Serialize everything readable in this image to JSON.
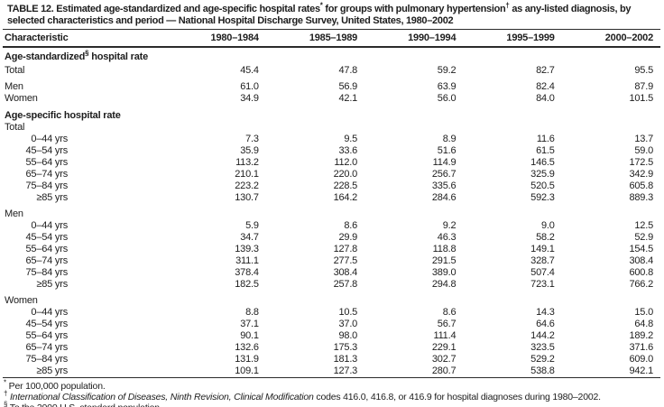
{
  "title": {
    "parts": [
      {
        "text": "TABLE 12. Estimated age-standardized and age-specific hospital rates"
      },
      {
        "sup": "*"
      },
      {
        "text": " for groups with pulmonary hypertension"
      },
      {
        "sup": "†"
      },
      {
        "text": " as any-listed diagnosis, by selected characteristics and period — National Hospital Discharge Survey, United States, 1980–2002"
      }
    ]
  },
  "columns": [
    "Characteristic",
    "1980–1984",
    "1985–1989",
    "1990–1994",
    "1995–1999",
    "2000–2002"
  ],
  "sections": [
    {
      "heading_parts": [
        {
          "text": "Age-standardized"
        },
        {
          "sup": "§"
        },
        {
          "text": " hospital rate"
        }
      ],
      "groups": [
        {
          "rows": [
            {
              "label": "Total",
              "indent": false,
              "values": [
                "45.4",
                "47.8",
                "59.2",
                "82.7",
                "95.5"
              ]
            }
          ]
        },
        {
          "rows": [
            {
              "label": "Men",
              "indent": false,
              "values": [
                "61.0",
                "56.9",
                "63.9",
                "82.4",
                "87.9"
              ]
            },
            {
              "label": "Women",
              "indent": false,
              "values": [
                "34.9",
                "42.1",
                "56.0",
                "84.0",
                "101.5"
              ]
            }
          ]
        }
      ]
    },
    {
      "heading_parts": [
        {
          "text": "Age-specific hospital rate"
        }
      ],
      "groups": [
        {
          "rows": [
            {
              "label": "Total",
              "indent": false,
              "values": [
                "",
                "",
                "",
                "",
                ""
              ]
            },
            {
              "label": "0–44 yrs",
              "indent": true,
              "values": [
                "7.3",
                "9.5",
                "8.9",
                "11.6",
                "13.7"
              ]
            },
            {
              "label": "45–54 yrs",
              "indent": true,
              "values": [
                "35.9",
                "33.6",
                "51.6",
                "61.5",
                "59.0"
              ]
            },
            {
              "label": "55–64 yrs",
              "indent": true,
              "values": [
                "113.2",
                "112.0",
                "114.9",
                "146.5",
                "172.5"
              ]
            },
            {
              "label": "65–74 yrs",
              "indent": true,
              "values": [
                "210.1",
                "220.0",
                "256.7",
                "325.9",
                "342.9"
              ]
            },
            {
              "label": "75–84 yrs",
              "indent": true,
              "values": [
                "223.2",
                "228.5",
                "335.6",
                "520.5",
                "605.8"
              ]
            },
            {
              "label": "≥85 yrs",
              "indent": true,
              "values": [
                "130.7",
                "164.2",
                "284.6",
                "592.3",
                "889.3"
              ]
            }
          ]
        },
        {
          "rows": [
            {
              "label": "Men",
              "indent": false,
              "values": [
                "",
                "",
                "",
                "",
                ""
              ]
            },
            {
              "label": "0–44 yrs",
              "indent": true,
              "values": [
                "5.9",
                "8.6",
                "9.2",
                "9.0",
                "12.5"
              ]
            },
            {
              "label": "45–54 yrs",
              "indent": true,
              "values": [
                "34.7",
                "29.9",
                "46.3",
                "58.2",
                "52.9"
              ]
            },
            {
              "label": "55–64 yrs",
              "indent": true,
              "values": [
                "139.3",
                "127.8",
                "118.8",
                "149.1",
                "154.5"
              ]
            },
            {
              "label": "65–74 yrs",
              "indent": true,
              "values": [
                "311.1",
                "277.5",
                "291.5",
                "328.7",
                "308.4"
              ]
            },
            {
              "label": "75–84 yrs",
              "indent": true,
              "values": [
                "378.4",
                "308.4",
                "389.0",
                "507.4",
                "600.8"
              ]
            },
            {
              "label": "≥85 yrs",
              "indent": true,
              "values": [
                "182.5",
                "257.8",
                "294.8",
                "723.1",
                "766.2"
              ]
            }
          ]
        },
        {
          "rows": [
            {
              "label": "Women",
              "indent": false,
              "values": [
                "",
                "",
                "",
                "",
                ""
              ]
            },
            {
              "label": "0–44 yrs",
              "indent": true,
              "values": [
                "8.8",
                "10.5",
                "8.6",
                "14.3",
                "15.0"
              ]
            },
            {
              "label": "45–54 yrs",
              "indent": true,
              "values": [
                "37.1",
                "37.0",
                "56.7",
                "64.6",
                "64.8"
              ]
            },
            {
              "label": "55–64 yrs",
              "indent": true,
              "values": [
                "90.1",
                "98.0",
                "111.4",
                "144.2",
                "189.2"
              ]
            },
            {
              "label": "65–74 yrs",
              "indent": true,
              "values": [
                "132.6",
                "175.3",
                "229.1",
                "323.5",
                "371.6"
              ]
            },
            {
              "label": "75–84 yrs",
              "indent": true,
              "values": [
                "131.9",
                "181.3",
                "302.7",
                "529.2",
                "609.0"
              ]
            },
            {
              "label": "≥85 yrs",
              "indent": true,
              "values": [
                "109.1",
                "127.3",
                "280.7",
                "538.8",
                "942.1"
              ]
            }
          ]
        }
      ]
    }
  ],
  "footnotes": [
    {
      "marker": "*",
      "segments": [
        {
          "text": " Per 100,000 population."
        }
      ]
    },
    {
      "marker": "†",
      "segments": [
        {
          "text": " "
        },
        {
          "italic": "International Classification of Diseases, Ninth Revision, Clinical Modification"
        },
        {
          "text": " codes 416.0, 416.8, or 416.9 for hospital diagnoses during 1980–2002."
        }
      ]
    },
    {
      "marker": "§",
      "segments": [
        {
          "text": " To the 2000 U.S. standard population."
        }
      ]
    }
  ]
}
